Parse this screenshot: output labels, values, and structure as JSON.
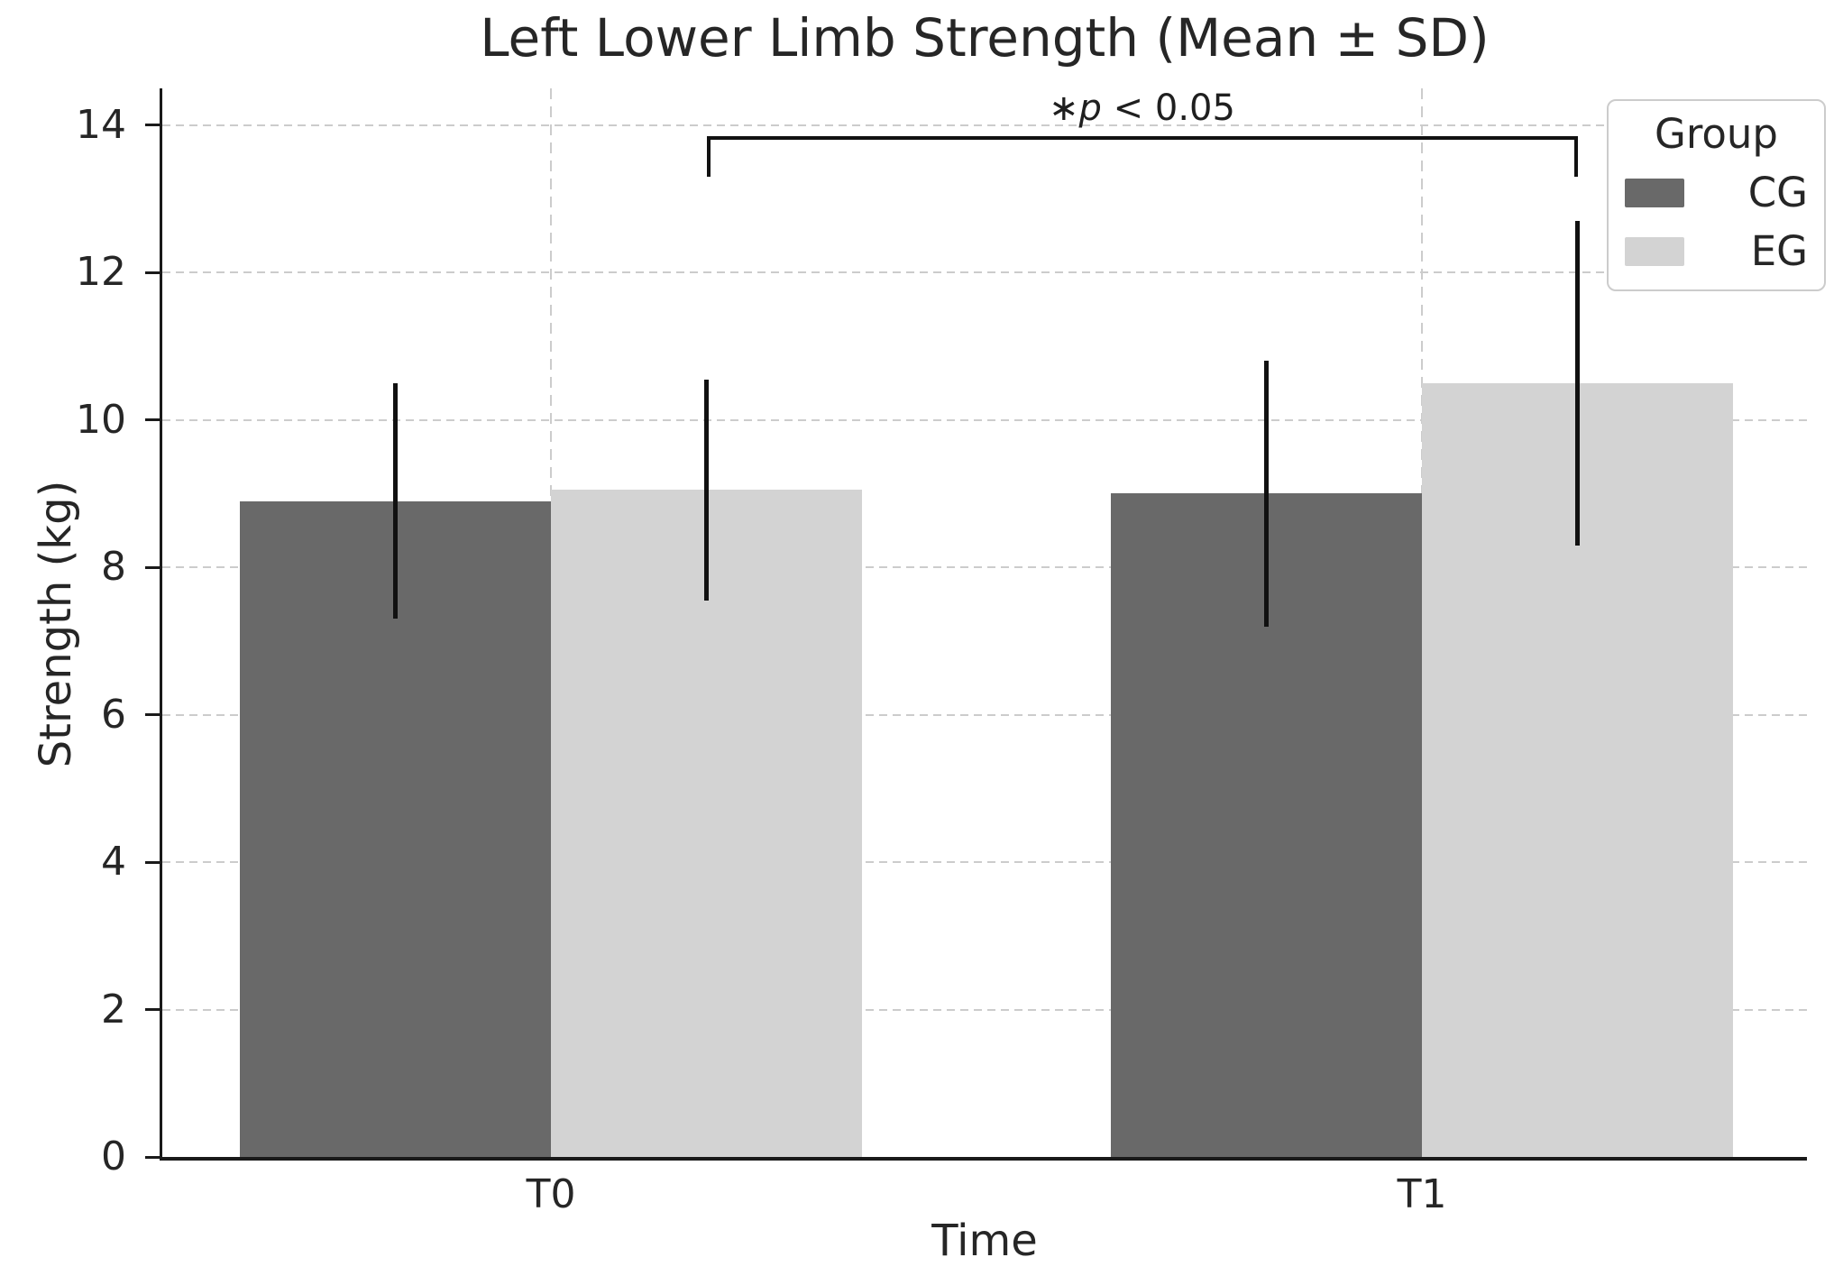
{
  "chart_data": {
    "type": "bar",
    "title": "Left Lower Limb Strength (Mean ± SD)",
    "xlabel": "Time",
    "ylabel": "Strength (kg)",
    "categories": [
      "T0",
      "T1"
    ],
    "series": [
      {
        "name": "CG",
        "color": "#696969",
        "values": [
          8.9,
          9.0
        ],
        "sd": [
          1.6,
          1.8
        ]
      },
      {
        "name": "EG",
        "color": "#d3d3d3",
        "values": [
          9.05,
          10.5
        ],
        "sd": [
          1.5,
          2.2
        ]
      }
    ],
    "ylim": [
      0,
      14.5
    ],
    "yticks": [
      0,
      2,
      4,
      6,
      8,
      10,
      12,
      14
    ],
    "grid": {
      "horizontal": true,
      "vertical": true,
      "color": "#cccccc",
      "style": "dashed"
    },
    "error_bar_color": "#111111",
    "legend": {
      "title": "Group",
      "position": "upper right",
      "items": [
        {
          "label": "CG",
          "color": "#696969"
        },
        {
          "label": "EG",
          "color": "#d3d3d3"
        }
      ]
    },
    "annotation": {
      "text": "*p < 0.05",
      "star": "∗",
      "variable": "p",
      "comparison": " < 0.05"
    },
    "significance_bracket": {
      "from": {
        "category": "T0",
        "series": "EG"
      },
      "to": {
        "category": "T1",
        "series": "EG"
      },
      "y_top": 13.85,
      "y_end": 13.3
    }
  }
}
